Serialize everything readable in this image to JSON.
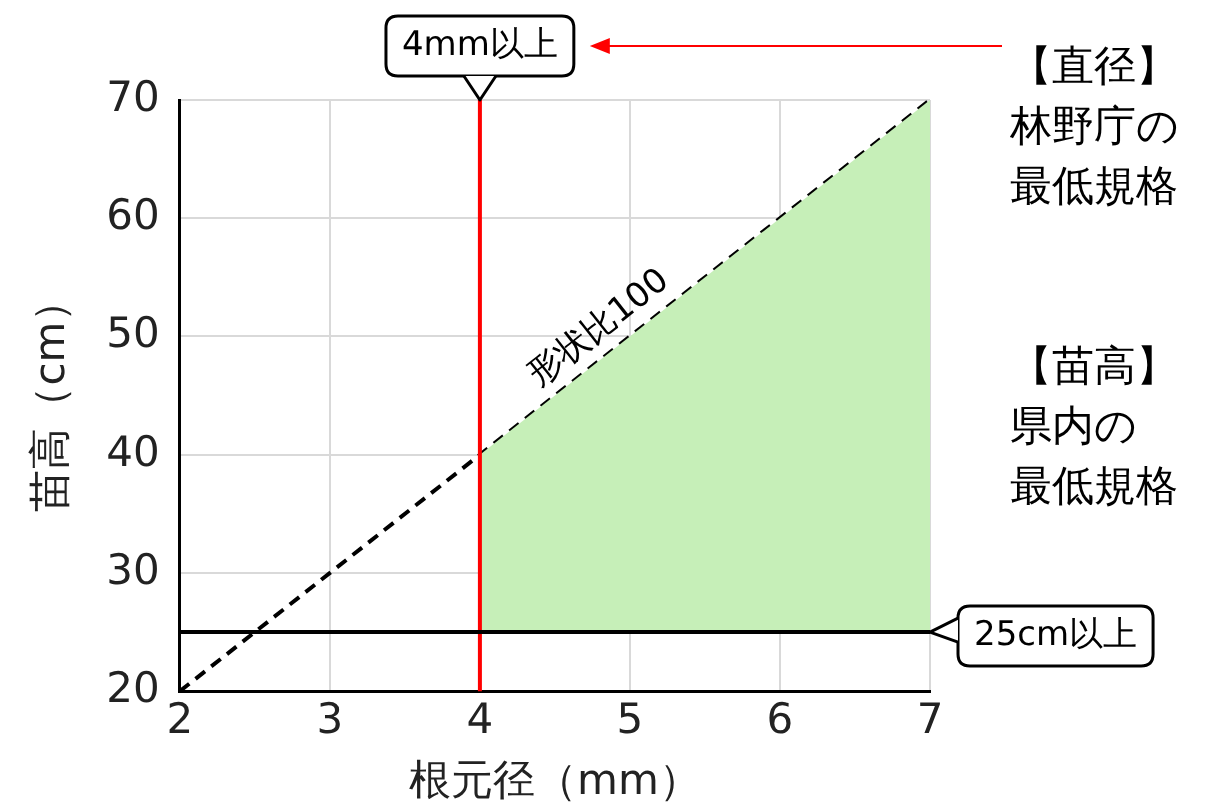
{
  "chart_data": {
    "type": "line",
    "xlabel": "根元径（mm）",
    "ylabel": "苗高（cm）",
    "xlim": [
      2,
      7
    ],
    "xticks": [
      2,
      3,
      4,
      5,
      6,
      7
    ],
    "ylim": [
      20,
      70
    ],
    "yticks": [
      20,
      30,
      40,
      50,
      60,
      70
    ],
    "grid": true,
    "legend": false,
    "series": [
      {
        "type": "area",
        "color": "#c6efb8",
        "x": [
          4,
          7
        ],
        "values": [
          40,
          70
        ]
      },
      {
        "name": "形状比100",
        "color": "#000000",
        "x": [
          2,
          7
        ],
        "values": [
          20,
          70
        ],
        "line_style": "dashed",
        "marker": "none"
      }
    ],
    "ref_lines": [
      {
        "axis": "x",
        "value": 4,
        "label": "4mm以上",
        "color": "#ff0000"
      },
      {
        "axis": "y",
        "value": 25,
        "label": "25cm以上",
        "color": "#000000"
      }
    ],
    "annotations": [
      "【直径】林野庁の最低規格",
      "【苗高】県内の最低規格"
    ]
  }
}
